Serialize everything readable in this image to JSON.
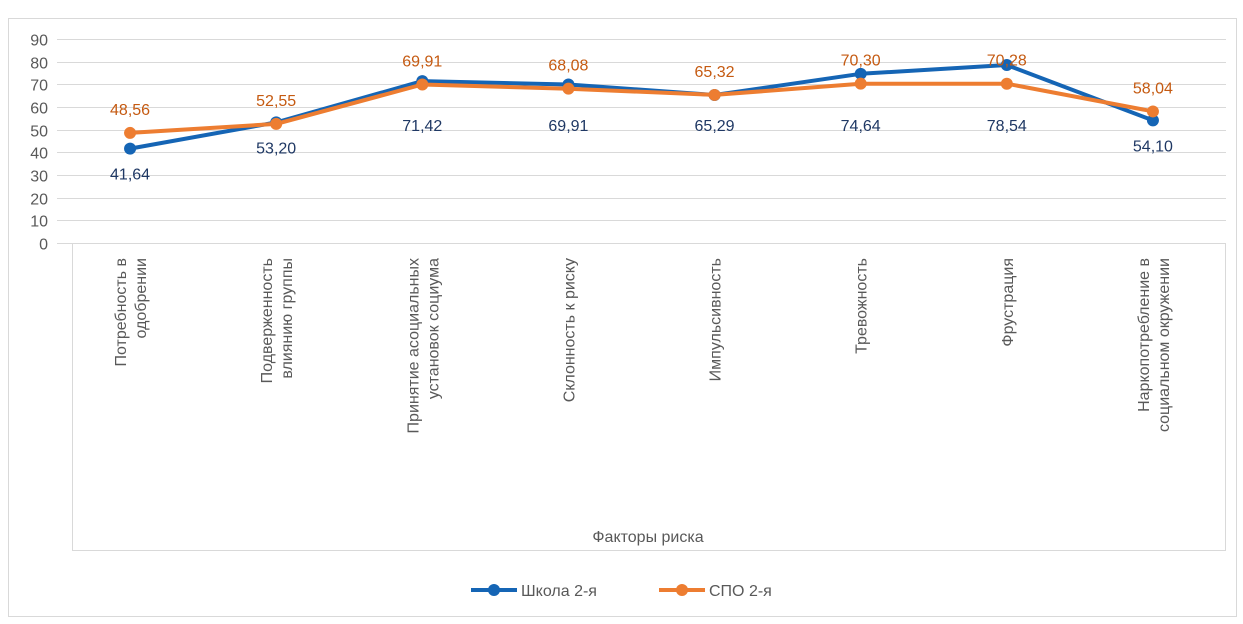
{
  "chart_data": {
    "type": "line",
    "xlabel": "Факторы риска",
    "ylabel": "",
    "ylim": [
      0,
      90
    ],
    "yticks": [
      "0",
      "10",
      "20",
      "30",
      "40",
      "50",
      "60",
      "70",
      "80",
      "90"
    ],
    "grid": true,
    "legend": "bottom",
    "categories": [
      [
        "Потребность в",
        "одобрении"
      ],
      [
        "Подверженность",
        "влиянию группы"
      ],
      [
        "Принятие асоциальных",
        "установок социума"
      ],
      [
        "Склонность к риску"
      ],
      [
        "Импульсивность"
      ],
      [
        "Тревожность"
      ],
      [
        "Фрустрация"
      ],
      [
        "Наркопотребление в",
        "социальном окружении"
      ]
    ],
    "series": [
      {
        "name": "Школа 2-я",
        "color": "#1565b5",
        "label_color": "#1f3864",
        "values": [
          41.64,
          53.2,
          71.42,
          69.91,
          65.29,
          74.64,
          78.54,
          54.1
        ],
        "labels": [
          "41,64",
          "53,20",
          "71,42",
          "69,91",
          "65,29",
          "74,64",
          "78,54",
          "54,10"
        ]
      },
      {
        "name": "СПО 2-я",
        "color": "#ed7d31",
        "label_color": "#c55a11",
        "values": [
          48.56,
          52.55,
          69.91,
          68.08,
          65.32,
          70.3,
          70.28,
          58.04
        ],
        "labels": [
          "48,56",
          "52,55",
          "69,91",
          "68,08",
          "65,32",
          "70,30",
          "70,28",
          "58,04"
        ]
      }
    ]
  }
}
